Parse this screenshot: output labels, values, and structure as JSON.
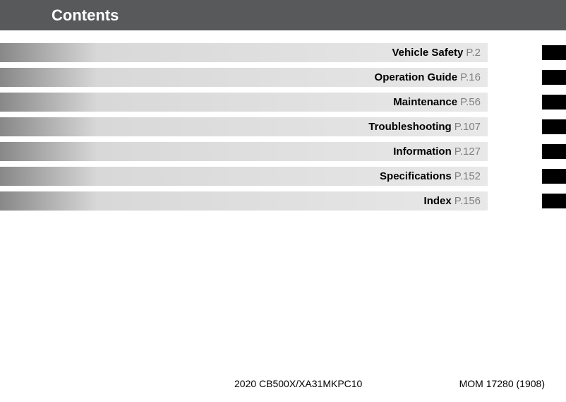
{
  "header": {
    "title": "Contents"
  },
  "toc": [
    {
      "label": "Vehicle Safety",
      "page": "P.2"
    },
    {
      "label": "Operation Guide",
      "page": "P.16"
    },
    {
      "label": "Maintenance",
      "page": "P.56"
    },
    {
      "label": "Troubleshooting",
      "page": "P.107"
    },
    {
      "label": "Information",
      "page": "P.127"
    },
    {
      "label": "Specifications",
      "page": "P.152"
    },
    {
      "label": "Index",
      "page": "P.156"
    }
  ],
  "footer": {
    "model": "2020 CB500X/XA31MKPC10",
    "code": "MOM 17280 (1908)"
  },
  "colors": {
    "header_bg": "#58595b",
    "tab_bg": "#000000",
    "label_color": "#000000",
    "page_color": "#808080"
  }
}
